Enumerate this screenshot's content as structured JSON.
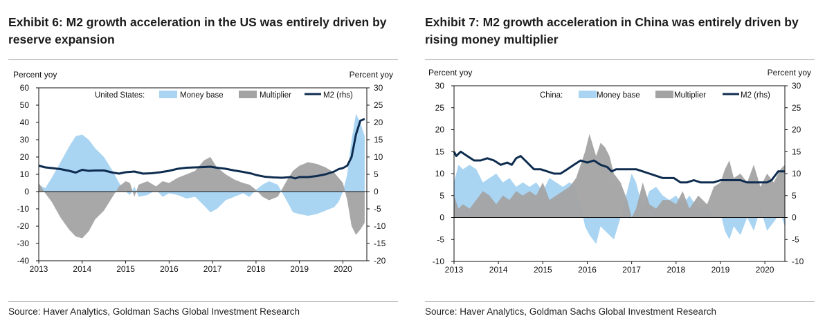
{
  "exhibits": [
    {
      "title": "Exhibit 6: M2 growth acceleration in the US was entirely driven by reserve expansion",
      "source": "Source: Haver Analytics, Goldman Sachs Global Investment Research"
    },
    {
      "title": "Exhibit 7: M2 growth acceleration in China was entirely driven by rising money multiplier",
      "source": "Source: Haver Analytics, Goldman Sachs Global Investment Research"
    }
  ],
  "colors": {
    "money_base": "#a9d4f2",
    "multiplier": "#a3a3a3",
    "m2": "#0d2c4f"
  },
  "chart_data": [
    {
      "type": "area",
      "legend_prefix": "United States:",
      "legend_position": "top",
      "ylabel_left": "Percent yoy",
      "ylabel_right": "Percent yoy",
      "ylim_left": [
        -40,
        60
      ],
      "ylim_right": [
        -20,
        30
      ],
      "yticks_left": [
        -40,
        -30,
        -20,
        -10,
        0,
        10,
        20,
        30,
        40,
        50,
        60
      ],
      "yticks_right": [
        -20,
        -15,
        -10,
        -5,
        0,
        5,
        10,
        15,
        20,
        25,
        30
      ],
      "xlim": [
        2013.0,
        2020.55
      ],
      "xticks": [
        "2013",
        "2014",
        "2015",
        "2016",
        "2017",
        "2018",
        "2019",
        "2020"
      ],
      "grid": false,
      "series": [
        {
          "name": "Money base",
          "kind": "area",
          "axis": "left",
          "color": "#a9d4f2",
          "x": [
            2013.0,
            2013.15,
            2013.3,
            2013.5,
            2013.7,
            2013.85,
            2014.0,
            2014.15,
            2014.3,
            2014.5,
            2014.7,
            2014.85,
            2015.0,
            2015.1,
            2015.2,
            2015.3,
            2015.5,
            2015.7,
            2015.85,
            2016.0,
            2016.2,
            2016.4,
            2016.6,
            2016.8,
            2016.95,
            2017.1,
            2017.3,
            2017.5,
            2017.7,
            2017.85,
            2018.0,
            2018.15,
            2018.3,
            2018.5,
            2018.7,
            2018.85,
            2019.0,
            2019.2,
            2019.4,
            2019.6,
            2019.8,
            2019.9,
            2020.0,
            2020.1,
            2020.2,
            2020.3,
            2020.4,
            2020.5
          ],
          "values": [
            4,
            2,
            8,
            17,
            26,
            32,
            33,
            30,
            25,
            20,
            12,
            5,
            0,
            -2,
            3,
            -3,
            -2,
            1,
            -3,
            -1,
            -2,
            -4,
            -3,
            -8,
            -12,
            -10,
            -5,
            -3,
            -1,
            -3,
            1,
            4,
            6,
            4,
            -5,
            -12,
            -13,
            -14,
            -13,
            -11,
            -9,
            -6,
            0,
            10,
            30,
            45,
            40,
            32
          ]
        },
        {
          "name": "Multiplier",
          "kind": "area",
          "axis": "left",
          "color": "#a3a3a3",
          "x": [
            2013.0,
            2013.15,
            2013.3,
            2013.5,
            2013.7,
            2013.85,
            2014.0,
            2014.15,
            2014.3,
            2014.5,
            2014.7,
            2014.85,
            2015.0,
            2015.1,
            2015.2,
            2015.3,
            2015.5,
            2015.7,
            2015.85,
            2016.0,
            2016.2,
            2016.4,
            2016.6,
            2016.8,
            2016.95,
            2017.1,
            2017.3,
            2017.5,
            2017.7,
            2017.85,
            2018.0,
            2018.15,
            2018.3,
            2018.5,
            2018.7,
            2018.85,
            2019.0,
            2019.2,
            2019.4,
            2019.6,
            2019.8,
            2019.9,
            2020.0,
            2020.1,
            2020.2,
            2020.3,
            2020.4,
            2020.5
          ],
          "values": [
            5,
            -1,
            -6,
            -15,
            -22,
            -26,
            -27,
            -23,
            -16,
            -11,
            -3,
            3,
            6,
            5,
            -3,
            4,
            6,
            3,
            6,
            5,
            8,
            10,
            12,
            18,
            20,
            14,
            10,
            7,
            5,
            4,
            1,
            -3,
            -5,
            -3,
            6,
            12,
            15,
            17,
            16,
            14,
            11,
            8,
            5,
            -5,
            -20,
            -25,
            -22,
            -18
          ]
        },
        {
          "name": "M2 (rhs)",
          "kind": "line",
          "axis": "right",
          "color": "#0d2c4f",
          "x": [
            2013.0,
            2013.15,
            2013.3,
            2013.5,
            2013.7,
            2013.85,
            2014.0,
            2014.15,
            2014.3,
            2014.5,
            2014.7,
            2014.85,
            2015.0,
            2015.2,
            2015.4,
            2015.6,
            2015.8,
            2016.0,
            2016.2,
            2016.4,
            2016.6,
            2016.8,
            2016.95,
            2017.1,
            2017.3,
            2017.5,
            2017.7,
            2017.9,
            2018.0,
            2018.2,
            2018.4,
            2018.6,
            2018.8,
            2018.9,
            2019.0,
            2019.2,
            2019.4,
            2019.6,
            2019.8,
            2019.9,
            2020.0,
            2020.1,
            2020.2,
            2020.3,
            2020.4,
            2020.5
          ],
          "values": [
            7.5,
            7,
            6.8,
            6.5,
            6,
            5.5,
            6.3,
            6,
            6.1,
            6.1,
            5.5,
            5.2,
            5.6,
            5.8,
            5.2,
            5.3,
            5.6,
            6,
            6.6,
            6.9,
            7,
            7.1,
            7.2,
            6.9,
            6.6,
            6.1,
            5.7,
            5.2,
            4.8,
            4.3,
            4.1,
            4,
            4.2,
            3.8,
            4.2,
            4.2,
            4.5,
            5,
            5.8,
            6.5,
            6.8,
            7.5,
            10,
            16.5,
            20.5,
            21
          ]
        }
      ]
    },
    {
      "type": "area",
      "legend_prefix": "China:",
      "legend_position": "top",
      "ylabel_left": "Percent yoy",
      "ylabel_right": "Percent yoy",
      "ylim_left": [
        -10,
        30
      ],
      "ylim_right": [
        -10,
        30
      ],
      "yticks_left": [
        -10,
        -5,
        0,
        5,
        10,
        15,
        20,
        25,
        30
      ],
      "yticks_right": [
        -10,
        -5,
        0,
        5,
        10,
        15,
        20,
        25,
        30
      ],
      "xlim": [
        2013.0,
        2020.45
      ],
      "xticks": [
        "2013",
        "2014",
        "2015",
        "2016",
        "2017",
        "2018",
        "2019",
        "2020"
      ],
      "grid": false,
      "series": [
        {
          "name": "Money base",
          "kind": "area",
          "axis": "left",
          "color": "#a9d4f2",
          "x": [
            2013.0,
            2013.1,
            2013.2,
            2013.35,
            2013.5,
            2013.65,
            2013.8,
            2013.95,
            2014.1,
            2014.25,
            2014.4,
            2014.55,
            2014.7,
            2014.85,
            2015.0,
            2015.15,
            2015.3,
            2015.45,
            2015.6,
            2015.75,
            2015.85,
            2015.95,
            2016.05,
            2016.2,
            2016.3,
            2016.4,
            2016.5,
            2016.6,
            2016.75,
            2016.9,
            2017.0,
            2017.1,
            2017.25,
            2017.4,
            2017.55,
            2017.7,
            2017.85,
            2018.0,
            2018.15,
            2018.3,
            2018.5,
            2018.7,
            2018.85,
            2019.0,
            2019.1,
            2019.2,
            2019.3,
            2019.45,
            2019.6,
            2019.75,
            2019.9,
            2020.05,
            2020.2,
            2020.35,
            2020.45
          ],
          "values": [
            8,
            12,
            11,
            12,
            11,
            8,
            9,
            10,
            8,
            9,
            7,
            8,
            7,
            8,
            6,
            9,
            8,
            7,
            8,
            7,
            3,
            -2,
            -4,
            -6,
            -2,
            -3,
            -4,
            -5,
            0,
            6,
            10,
            8,
            2,
            6,
            7,
            5,
            4,
            5,
            3,
            5,
            2,
            3,
            0,
            1,
            -3,
            -5,
            -2,
            -4,
            0,
            -3,
            2,
            -3,
            -1,
            1,
            -2
          ]
        },
        {
          "name": "Multiplier",
          "kind": "area",
          "axis": "left",
          "color": "#a3a3a3",
          "x": [
            2013.0,
            2013.1,
            2013.2,
            2013.35,
            2013.5,
            2013.65,
            2013.8,
            2013.95,
            2014.1,
            2014.25,
            2014.4,
            2014.55,
            2014.7,
            2014.85,
            2015.0,
            2015.15,
            2015.3,
            2015.45,
            2015.6,
            2015.75,
            2015.85,
            2015.95,
            2016.05,
            2016.2,
            2016.3,
            2016.4,
            2016.5,
            2016.6,
            2016.75,
            2016.9,
            2017.0,
            2017.1,
            2017.25,
            2017.4,
            2017.55,
            2017.7,
            2017.85,
            2018.0,
            2018.15,
            2018.3,
            2018.5,
            2018.7,
            2018.85,
            2019.0,
            2019.1,
            2019.2,
            2019.3,
            2019.45,
            2019.6,
            2019.75,
            2019.9,
            2020.05,
            2020.2,
            2020.35,
            2020.45
          ],
          "values": [
            5,
            2,
            3,
            2,
            4,
            6,
            5,
            3,
            5,
            4,
            6,
            5,
            6,
            5,
            8,
            4,
            5,
            6,
            7,
            9,
            12,
            15,
            19,
            14,
            17,
            16,
            14,
            10,
            8,
            4,
            0,
            2,
            8,
            3,
            2,
            4,
            4,
            3,
            6,
            2,
            5,
            3,
            7,
            8,
            11,
            13,
            9,
            10,
            8,
            12,
            7,
            10,
            8,
            11,
            12
          ]
        },
        {
          "name": "M2 (rhs)",
          "kind": "line",
          "axis": "right",
          "color": "#0d2c4f",
          "x": [
            2013.0,
            2013.05,
            2013.15,
            2013.3,
            2013.45,
            2013.6,
            2013.75,
            2013.9,
            2014.05,
            2014.2,
            2014.3,
            2014.4,
            2014.5,
            2014.65,
            2014.8,
            2014.95,
            2015.1,
            2015.25,
            2015.4,
            2015.55,
            2015.7,
            2015.85,
            2016.0,
            2016.15,
            2016.3,
            2016.45,
            2016.55,
            2016.65,
            2016.8,
            2016.95,
            2017.1,
            2017.25,
            2017.4,
            2017.55,
            2017.7,
            2017.85,
            2017.95,
            2018.1,
            2018.25,
            2018.4,
            2018.55,
            2018.7,
            2018.85,
            2019.0,
            2019.15,
            2019.3,
            2019.45,
            2019.6,
            2019.75,
            2019.9,
            2020.05,
            2020.15,
            2020.3,
            2020.45
          ],
          "values": [
            15,
            14,
            15,
            14,
            13,
            13,
            13.5,
            13,
            12,
            12.5,
            12,
            13.5,
            14,
            12.5,
            11,
            11,
            10.5,
            10,
            10,
            11,
            12,
            13,
            12.5,
            13,
            12,
            11.5,
            10.5,
            11,
            11,
            11,
            11,
            10.5,
            10,
            9.5,
            9,
            9,
            9,
            8,
            8,
            8.5,
            8,
            8,
            8,
            8.5,
            8.5,
            8.5,
            8.5,
            8,
            8,
            8,
            8,
            8.5,
            10.5,
            10.5
          ]
        }
      ]
    }
  ]
}
